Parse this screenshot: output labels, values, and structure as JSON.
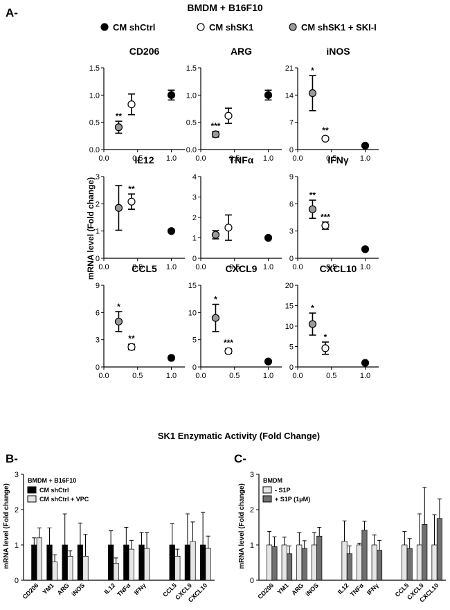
{
  "panel_a": {
    "letter": "A-",
    "title": "BMDM + B16F10",
    "legend": [
      {
        "label": "CM shCtrl",
        "fill": "#000000"
      },
      {
        "label": "CM shSK1",
        "fill": "#ffffff"
      },
      {
        "label": "CM shSK1 + SKI-I",
        "fill": "#9a9a9a"
      }
    ],
    "ylabel": "mRNA level (Fold change)",
    "xlabel": "SK1 Enzymatic Activity (Fold Change)"
  },
  "panel_b": {
    "letter": "B-",
    "legend_title": "BMDM + B16F10",
    "legend": [
      {
        "label": "CM shCtrl",
        "fill": "#000000"
      },
      {
        "label": "CM shCtrl + VPC",
        "fill": "#e6e6e6"
      }
    ]
  },
  "panel_c": {
    "letter": "C-",
    "legend_title": "BMDM",
    "legend": [
      {
        "label": "- S1P",
        "fill": "#e6e6e6"
      },
      {
        "label": "+ S1P (1μM)",
        "fill": "#707070"
      }
    ]
  },
  "chart_data": [
    {
      "id": "CD206",
      "type": "scatter",
      "title": "CD206",
      "xlim": [
        0,
        1.2
      ],
      "xticks": [
        "0.0",
        "0.5",
        "1.0"
      ],
      "ylim": [
        0,
        1.5
      ],
      "yticks": [
        "0.0",
        "0.5",
        "1.0",
        "1.5"
      ],
      "points": [
        {
          "group": "CM shSK1 + SKI-I",
          "x": 0.22,
          "y": 0.41,
          "err": 0.11,
          "sig": "**"
        },
        {
          "group": "CM shSK1",
          "x": 0.41,
          "y": 0.83,
          "err": 0.19,
          "sig": ""
        },
        {
          "group": "CM shCtrl",
          "x": 1.0,
          "y": 1.0,
          "err": 0.09,
          "sig": ""
        }
      ]
    },
    {
      "id": "ARG",
      "type": "scatter",
      "title": "ARG",
      "xlim": [
        0,
        1.2
      ],
      "xticks": [
        "0.0",
        "0.5",
        "1.0"
      ],
      "ylim": [
        0,
        1.5
      ],
      "yticks": [
        "0.0",
        "0.5",
        "1.0",
        "1.5"
      ],
      "points": [
        {
          "group": "CM shSK1 + SKI-I",
          "x": 0.22,
          "y": 0.28,
          "err": 0.05,
          "sig": "***"
        },
        {
          "group": "CM shSK1",
          "x": 0.41,
          "y": 0.62,
          "err": 0.14,
          "sig": ""
        },
        {
          "group": "CM shCtrl",
          "x": 1.0,
          "y": 1.0,
          "err": 0.09,
          "sig": ""
        }
      ]
    },
    {
      "id": "iNOS",
      "type": "scatter",
      "title": "iNOS",
      "xlim": [
        0,
        1.2
      ],
      "xticks": [
        "0.0",
        "0.5",
        "1.0"
      ],
      "ylim": [
        0,
        21
      ],
      "yticks": [
        "0",
        "7",
        "14",
        "21"
      ],
      "points": [
        {
          "group": "CM shSK1 + SKI-I",
          "x": 0.22,
          "y": 14.5,
          "err": 4.5,
          "sig": "*"
        },
        {
          "group": "CM shSK1",
          "x": 0.41,
          "y": 2.8,
          "err": 0.4,
          "sig": "**"
        },
        {
          "group": "CM shCtrl",
          "x": 1.0,
          "y": 1.0,
          "err": 0.2,
          "sig": ""
        }
      ]
    },
    {
      "id": "IL12",
      "type": "scatter",
      "title": "IL12",
      "xlim": [
        0,
        1.2
      ],
      "xticks": [
        "0.0",
        "0.5",
        "1.0"
      ],
      "ylim": [
        0,
        3
      ],
      "yticks": [
        "0",
        "1",
        "2",
        "3"
      ],
      "points": [
        {
          "group": "CM shSK1 + SKI-I",
          "x": 0.22,
          "y": 1.85,
          "err": 0.82,
          "sig": ""
        },
        {
          "group": "CM shSK1",
          "x": 0.41,
          "y": 2.08,
          "err": 0.28,
          "sig": "**"
        },
        {
          "group": "CM shCtrl",
          "x": 1.0,
          "y": 1.0,
          "err": 0.05,
          "sig": ""
        }
      ]
    },
    {
      "id": "TNFa",
      "type": "scatter",
      "title": "TNFα",
      "xlim": [
        0,
        1.2
      ],
      "xticks": [
        "0.0",
        "0.5",
        "1.0"
      ],
      "ylim": [
        0,
        4
      ],
      "yticks": [
        "0",
        "1",
        "2",
        "3",
        "4"
      ],
      "points": [
        {
          "group": "CM shSK1 + SKI-I",
          "x": 0.22,
          "y": 1.15,
          "err": 0.2,
          "sig": ""
        },
        {
          "group": "CM shSK1",
          "x": 0.41,
          "y": 1.5,
          "err": 0.62,
          "sig": ""
        },
        {
          "group": "CM shCtrl",
          "x": 1.0,
          "y": 1.0,
          "err": 0.05,
          "sig": ""
        }
      ]
    },
    {
      "id": "IFNg",
      "type": "scatter",
      "title": "IFNγ",
      "xlim": [
        0,
        1.2
      ],
      "xticks": [
        "0.0",
        "0.5",
        "1.0"
      ],
      "ylim": [
        0,
        9
      ],
      "yticks": [
        "0",
        "3",
        "6",
        "9"
      ],
      "points": [
        {
          "group": "CM shSK1 + SKI-I",
          "x": 0.22,
          "y": 5.4,
          "err": 1.0,
          "sig": "**"
        },
        {
          "group": "CM shSK1",
          "x": 0.41,
          "y": 3.6,
          "err": 0.4,
          "sig": "***"
        },
        {
          "group": "CM shCtrl",
          "x": 1.0,
          "y": 1.0,
          "err": 0.1,
          "sig": ""
        }
      ]
    },
    {
      "id": "CCL5",
      "type": "scatter",
      "title": "CCL5",
      "xlim": [
        0,
        1.2
      ],
      "xticks": [
        "0.0",
        "0.5",
        "1.0"
      ],
      "ylim": [
        0,
        9
      ],
      "yticks": [
        "0",
        "3",
        "6",
        "9"
      ],
      "points": [
        {
          "group": "CM shSK1 + SKI-I",
          "x": 0.22,
          "y": 5.0,
          "err": 1.1,
          "sig": "*"
        },
        {
          "group": "CM shSK1",
          "x": 0.41,
          "y": 2.2,
          "err": 0.3,
          "sig": "**"
        },
        {
          "group": "CM shCtrl",
          "x": 1.0,
          "y": 1.0,
          "err": 0.1,
          "sig": ""
        }
      ]
    },
    {
      "id": "CXCL9",
      "type": "scatter",
      "title": "CXCL9",
      "xlim": [
        0,
        1.2
      ],
      "xticks": [
        "0.0",
        "0.5",
        "1.0"
      ],
      "ylim": [
        0,
        15
      ],
      "yticks": [
        "0",
        "5",
        "10",
        "15"
      ],
      "points": [
        {
          "group": "CM shSK1 + SKI-I",
          "x": 0.22,
          "y": 9.0,
          "err": 2.5,
          "sig": "*"
        },
        {
          "group": "CM shSK1",
          "x": 0.41,
          "y": 2.9,
          "err": 0.4,
          "sig": "***"
        },
        {
          "group": "CM shCtrl",
          "x": 1.0,
          "y": 1.0,
          "err": 0.1,
          "sig": ""
        }
      ]
    },
    {
      "id": "CXCL10",
      "type": "scatter",
      "title": "CXCL10",
      "xlim": [
        0,
        1.2
      ],
      "xticks": [
        "0.0",
        "0.5",
        "1.0"
      ],
      "ylim": [
        0,
        20
      ],
      "yticks": [
        "0",
        "5",
        "10",
        "15",
        "20"
      ],
      "points": [
        {
          "group": "CM shSK1 + SKI-I",
          "x": 0.22,
          "y": 10.5,
          "err": 2.7,
          "sig": "*"
        },
        {
          "group": "CM shSK1",
          "x": 0.41,
          "y": 4.6,
          "err": 1.5,
          "sig": "*"
        },
        {
          "group": "CM shCtrl",
          "x": 1.0,
          "y": 1.0,
          "err": 0.1,
          "sig": ""
        }
      ]
    },
    {
      "id": "B",
      "type": "bar",
      "ylabel": "mRNA level (Fold change)",
      "ylim": [
        0,
        3
      ],
      "yticks": [
        "0",
        "1",
        "2",
        "3"
      ],
      "groups": [
        [
          "CD206",
          "YM1",
          "ARG",
          "iNOS"
        ],
        [
          "IL12",
          "TNFα",
          "IFNγ"
        ],
        [
          "CCL5",
          "CXCL9",
          "CXCL10"
        ]
      ],
      "series": [
        {
          "name": "CM shCtrl",
          "values": [
            1,
            1,
            1,
            1,
            1,
            1,
            1,
            1,
            1,
            1
          ],
          "errors": [
            0.2,
            0.48,
            0.88,
            0.62,
            0.4,
            0.5,
            0.35,
            0.6,
            0.88,
            0.92
          ]
        },
        {
          "name": "CM shCtrl + VPC",
          "values": [
            1.2,
            0.52,
            0.68,
            0.68,
            0.48,
            0.88,
            0.9,
            0.68,
            1.1,
            0.9
          ],
          "errors": [
            0.28,
            0.2,
            0.15,
            0.62,
            0.15,
            0.25,
            0.45,
            0.2,
            0.55,
            0.35
          ]
        }
      ]
    },
    {
      "id": "C",
      "type": "bar",
      "ylabel": "mRNA level (Fold change)",
      "ylim": [
        0,
        3
      ],
      "yticks": [
        "0",
        "1",
        "2",
        "3"
      ],
      "groups": [
        [
          "CD206",
          "YM1",
          "ARG",
          "iNOS"
        ],
        [
          "IL12",
          "TNFα",
          "IFNγ"
        ],
        [
          "CCL5",
          "CXCL9",
          "CXCL10"
        ]
      ],
      "series": [
        {
          "name": "- S1P",
          "values": [
            1,
            1,
            1,
            1,
            1.1,
            1,
            1,
            1,
            1,
            1
          ],
          "errors": [
            0.38,
            0.22,
            0.35,
            0.35,
            0.58,
            0.05,
            0.28,
            0.38,
            0.88,
            0.85
          ],
          "sig": [
            "",
            "",
            "",
            "",
            "",
            "",
            "",
            "",
            "",
            ""
          ]
        },
        {
          "name": "+ S1P (1μM)",
          "values": [
            0.95,
            0.75,
            0.9,
            1.25,
            0.75,
            1.42,
            0.85,
            0.9,
            1.58,
            1.75
          ],
          "errors": [
            0.28,
            0.22,
            0.22,
            0.25,
            0.22,
            0.25,
            0.28,
            0.28,
            1.05,
            0.55
          ]
        }
      ]
    }
  ]
}
